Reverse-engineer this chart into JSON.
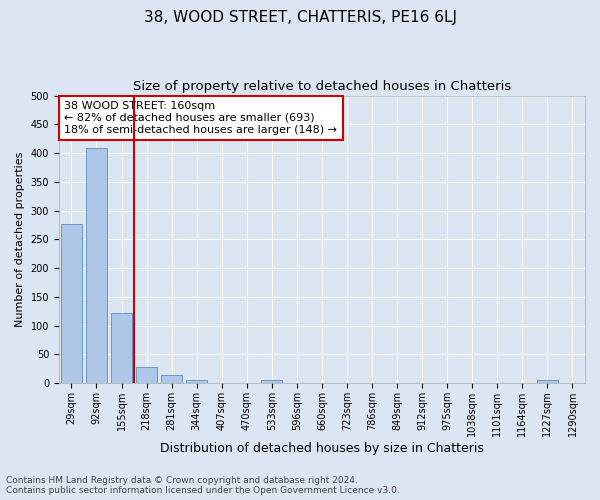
{
  "title": "38, WOOD STREET, CHATTERIS, PE16 6LJ",
  "subtitle": "Size of property relative to detached houses in Chatteris",
  "xlabel": "Distribution of detached houses by size in Chatteris",
  "ylabel": "Number of detached properties",
  "categories": [
    "29sqm",
    "92sqm",
    "155sqm",
    "218sqm",
    "281sqm",
    "344sqm",
    "407sqm",
    "470sqm",
    "533sqm",
    "596sqm",
    "660sqm",
    "723sqm",
    "786sqm",
    "849sqm",
    "912sqm",
    "975sqm",
    "1038sqm",
    "1101sqm",
    "1164sqm",
    "1227sqm",
    "1290sqm"
  ],
  "values": [
    277,
    408,
    122,
    28,
    14,
    5,
    0,
    0,
    5,
    0,
    0,
    0,
    0,
    0,
    0,
    0,
    0,
    0,
    0,
    5,
    0
  ],
  "bar_color": "#aec6e8",
  "bar_edge_color": "#5a8fc2",
  "redline_index": 2,
  "redline_color": "#cc0000",
  "annotation_text": "38 WOOD STREET: 160sqm\n← 82% of detached houses are smaller (693)\n18% of semi-detached houses are larger (148) →",
  "annotation_box_color": "#ffffff",
  "annotation_box_edge_color": "#cc0000",
  "ylim": [
    0,
    500
  ],
  "yticks": [
    0,
    50,
    100,
    150,
    200,
    250,
    300,
    350,
    400,
    450,
    500
  ],
  "background_color": "#dce6f2",
  "plot_background_color": "#dce6f2",
  "grid_color": "#ffffff",
  "footer_line1": "Contains HM Land Registry data © Crown copyright and database right 2024.",
  "footer_line2": "Contains public sector information licensed under the Open Government Licence v3.0.",
  "title_fontsize": 11,
  "subtitle_fontsize": 9.5,
  "xlabel_fontsize": 9,
  "ylabel_fontsize": 8,
  "tick_fontsize": 7,
  "annotation_fontsize": 8,
  "footer_fontsize": 6.5
}
